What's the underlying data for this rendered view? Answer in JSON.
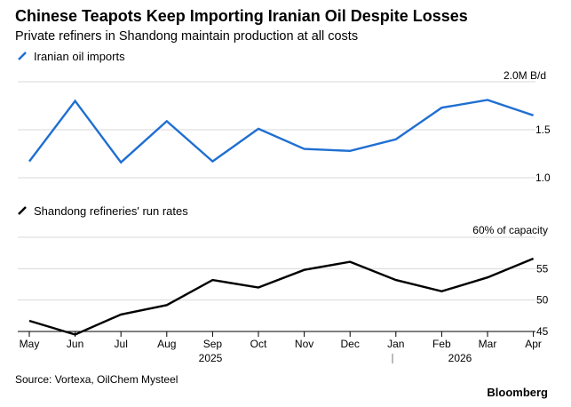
{
  "title": "Chinese Teapots Keep Importing Iranian Oil Despite Losses",
  "subtitle": "Private refiners in Shandong maintain production at all costs",
  "source": "Source: Vortexa, OilChem Mysteel",
  "brand": "Bloomberg",
  "chart_data": [
    {
      "type": "line",
      "legend": "Iranian oil imports",
      "color": "#1f6fd1",
      "unit_label": "2.0M B/d",
      "yticks": [
        "1.0",
        "1.5"
      ],
      "ytick_values": [
        1.0,
        1.5
      ],
      "ylim": [
        1.0,
        2.0
      ],
      "grid": true,
      "categories": [
        "May",
        "Jun",
        "Jul",
        "Aug",
        "Sep",
        "Oct",
        "Nov",
        "Dec",
        "Jan",
        "Feb",
        "Mar",
        "Apr"
      ],
      "values": [
        1.17,
        1.8,
        1.16,
        1.59,
        1.17,
        1.51,
        1.3,
        1.28,
        1.4,
        1.73,
        1.81,
        1.65
      ]
    },
    {
      "type": "line",
      "legend": "Shandong refineries' run rates",
      "color": "#000000",
      "unit_label": "60% of capacity",
      "yticks": [
        "45",
        "50",
        "55"
      ],
      "ytick_values": [
        45,
        50,
        55
      ],
      "ylim": [
        45,
        60
      ],
      "grid": true,
      "categories": [
        "May",
        "Jun",
        "Jul",
        "Aug",
        "Sep",
        "Oct",
        "Nov",
        "Dec",
        "Jan",
        "Feb",
        "Mar",
        "Apr"
      ],
      "values": [
        46.7,
        44.5,
        47.7,
        49.2,
        53.2,
        52.0,
        54.8,
        56.1,
        53.2,
        51.4,
        53.6,
        56.6
      ]
    }
  ],
  "x_axis": {
    "categories": [
      "May",
      "Jun",
      "Jul",
      "Aug",
      "Sep",
      "Oct",
      "Nov",
      "Dec",
      "Jan",
      "Feb",
      "Mar",
      "Apr"
    ],
    "years": [
      "2025",
      "2026"
    ]
  }
}
